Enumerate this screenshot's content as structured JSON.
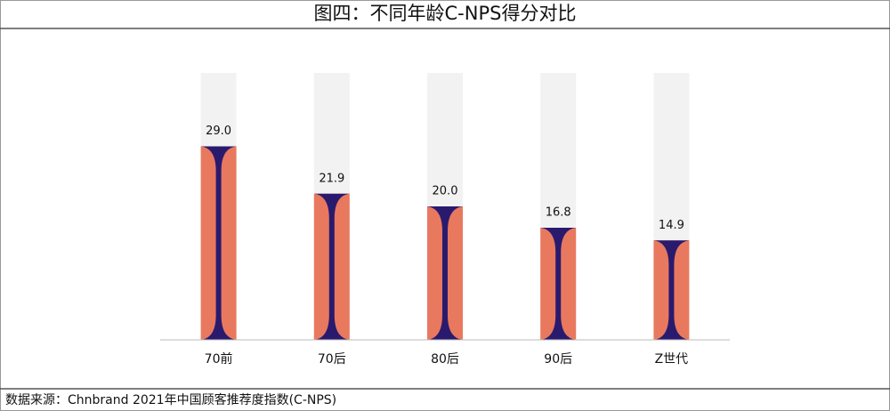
{
  "chart_data": {
    "type": "bar",
    "title": "图四：不同年龄C-NPS得分对比",
    "categories": [
      "70前",
      "70后",
      "80后",
      "90后",
      "Z世代"
    ],
    "values": [
      29.0,
      21.9,
      20.0,
      16.8,
      14.9
    ],
    "value_labels": [
      "29.0",
      "21.9",
      "20.0",
      "16.8",
      "14.9"
    ],
    "ylim": [
      0,
      40
    ],
    "color": "#e8795f",
    "accent_color": "#2a1a6e",
    "track_color": "#f2f2f2",
    "source": "数据来源：Chnbrand 2021年中国顾客推荐度指数(C-NPS)"
  }
}
